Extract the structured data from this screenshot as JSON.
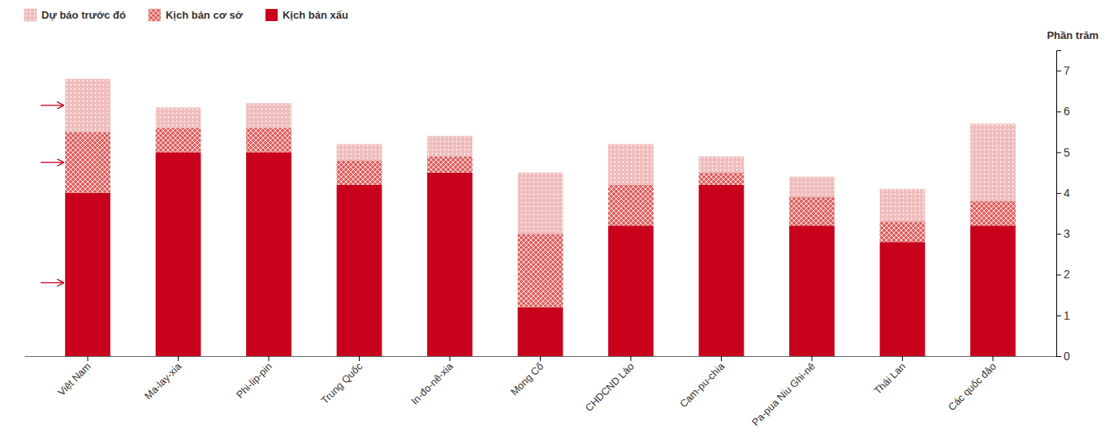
{
  "chart_data": {
    "type": "bar",
    "stacked": true,
    "categories": [
      "Việt Nam",
      "Ma-lay-xia",
      "Phi-lip-pin",
      "Trung Quốc",
      "In-đo-nê-xia",
      "Mong Cổ",
      "CHDCND Lào",
      "Cam-pu-chia",
      "Pa-pua Niu Ghi-nê",
      "Thái Lan",
      "Các quốc đảo"
    ],
    "series": [
      {
        "name": "Kịch bán xấu",
        "color": "#C8001C",
        "values": [
          4.0,
          5.0,
          5.0,
          4.2,
          4.5,
          1.2,
          3.2,
          4.2,
          3.2,
          2.8,
          3.2
        ]
      },
      {
        "name": "Kịch bán cơ sở",
        "color": "#E06060",
        "values": [
          1.5,
          0.6,
          0.6,
          0.6,
          0.4,
          1.8,
          1.0,
          0.3,
          0.7,
          0.5,
          0.6
        ]
      },
      {
        "name": "Dự báo trước đó",
        "color": "#F0BCBC",
        "values": [
          1.3,
          0.5,
          0.6,
          0.4,
          0.5,
          1.5,
          1.0,
          0.4,
          0.5,
          0.8,
          1.9
        ]
      }
    ],
    "ylabel": "Phần trăm",
    "ylim": [
      0,
      7.5
    ],
    "yticks": [
      0,
      1,
      2,
      3,
      4,
      5,
      6,
      7
    ],
    "grid": false,
    "legend": "upper left"
  }
}
